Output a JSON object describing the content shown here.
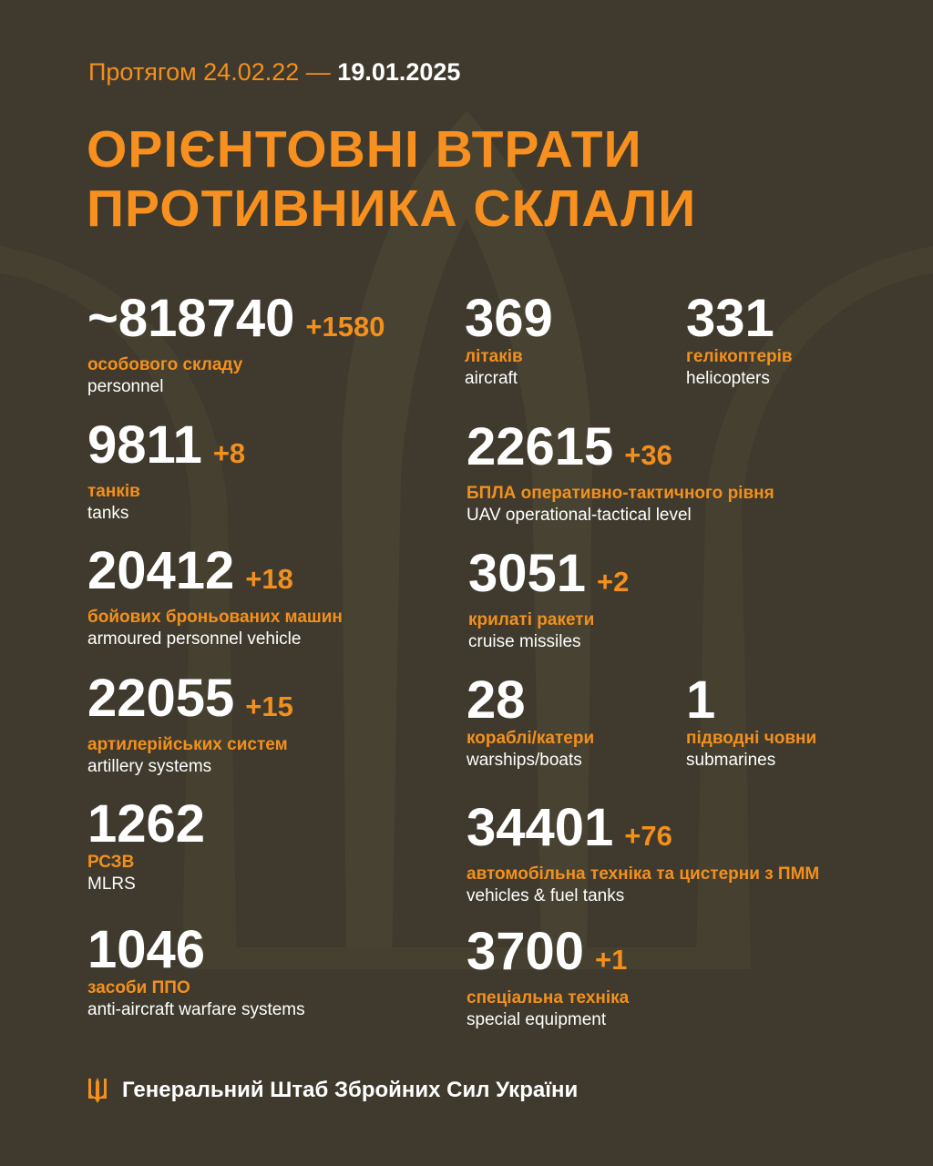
{
  "header": {
    "period_prefix": "Протягом 24.02.22 —",
    "period_end": "19.01.2025",
    "title_line1": "ОРІЄНТОВНІ ВТРАТИ",
    "title_line2": "ПРОТИВНИКА СКЛАЛИ"
  },
  "colors": {
    "background": "#3f3a2d",
    "accent": "#f7901e",
    "text": "#ffffff"
  },
  "stats": [
    {
      "value": "~818740",
      "delta": "+1580",
      "ua": "особового складу",
      "en": "personnel"
    },
    {
      "value": "369",
      "delta": "",
      "ua": "літаків",
      "en": "aircraft"
    },
    {
      "value": "331",
      "delta": "",
      "ua": "гелікоптерів",
      "en": "helicopters"
    },
    {
      "value": "9811",
      "delta": "+8",
      "ua": "танків",
      "en": "tanks"
    },
    {
      "value": "22615",
      "delta": "+36",
      "ua": "БПЛА оперативно-тактичного рівня",
      "en": "UAV operational-tactical level"
    },
    {
      "value": "20412",
      "delta": "+18",
      "ua": "бойових броньованих машин",
      "en": "armoured personnel vehicle"
    },
    {
      "value": "3051",
      "delta": "+2",
      "ua": "крилаті ракети",
      "en": "cruise missiles"
    },
    {
      "value": "22055",
      "delta": "+15",
      "ua": "артилерійських систем",
      "en": "artillery systems"
    },
    {
      "value": "28",
      "delta": "",
      "ua": "кораблі/катери",
      "en": "warships/boats"
    },
    {
      "value": "1",
      "delta": "",
      "ua": "підводні човни",
      "en": "submarines"
    },
    {
      "value": "1262",
      "delta": "",
      "ua": "РСЗВ",
      "en": "MLRS"
    },
    {
      "value": "34401",
      "delta": "+76",
      "ua": "автомобільна техніка та цистерни з ПММ",
      "en": "vehicles & fuel tanks"
    },
    {
      "value": "1046",
      "delta": "",
      "ua": "засоби ППО",
      "en": "anti-aircraft warfare systems"
    },
    {
      "value": "3700",
      "delta": "+1",
      "ua": "спеціальна техніка",
      "en": "special equipment"
    }
  ],
  "footer": {
    "icon": "trident-icon",
    "text": "Генеральний Штаб Збройних Сил України"
  }
}
